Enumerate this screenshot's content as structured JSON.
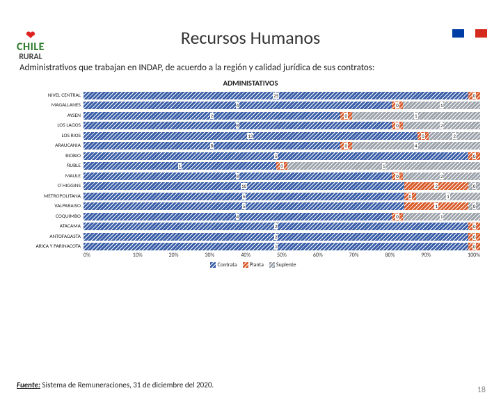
{
  "flag_colors": [
    "#003da5",
    "#ffffff",
    "#d52b1e"
  ],
  "logo": {
    "line1": "CHILE",
    "line2": "RURAL"
  },
  "title": "Recursos Humanos",
  "subtitle": "Administrativos que trabajan en INDAP, de acuerdo a la región y calidad jurídica de sus contratos:",
  "chart_title": "ADMINISTATIVOS",
  "series": [
    {
      "name": "Contrata",
      "color": "#3a5fa8"
    },
    {
      "name": "Planta",
      "color": "#d95b2a"
    },
    {
      "name": "Suplente",
      "color": "#9da3ab"
    }
  ],
  "pattern_stroke": "#ffffff",
  "categories": [
    {
      "label": "NIVEL CENTRAL",
      "v": [
        25,
        0,
        null
      ]
    },
    {
      "label": "MAGALLANES",
      "v": [
        4,
        0,
        1
      ]
    },
    {
      "label": "AYSEN",
      "v": [
        2,
        0,
        1
      ]
    },
    {
      "label": "LOS LAGOS",
      "v": [
        8,
        0,
        2
      ]
    },
    {
      "label": "LOS RIOS",
      "v": [
        13,
        0,
        2
      ]
    },
    {
      "label": "ARAUCANIA",
      "v": [
        8,
        0,
        4
      ]
    },
    {
      "label": "BIOBIO",
      "v": [
        5,
        0,
        null
      ]
    },
    {
      "label": "ÑUBLE",
      "v": [
        1,
        0,
        1
      ]
    },
    {
      "label": "MAULE",
      "v": [
        8,
        0,
        2
      ]
    },
    {
      "label": "O´HIGGINS",
      "v": [
        10,
        2,
        0
      ]
    },
    {
      "label": "METROPOLITANA",
      "v": [
        5,
        0,
        1
      ]
    },
    {
      "label": "VALPARAISO",
      "v": [
        5,
        1,
        0
      ]
    },
    {
      "label": "COQUIMBO",
      "v": [
        4,
        0,
        1
      ]
    },
    {
      "label": "ATACAMA",
      "v": [
        2,
        0,
        null
      ]
    },
    {
      "label": "ANTOFAGASTA",
      "v": [
        2,
        0,
        null
      ]
    },
    {
      "label": "ARICA Y PARINACOTA",
      "v": [
        1,
        0,
        null
      ]
    }
  ],
  "x_ticks": [
    "0%",
    "10%",
    "20%",
    "30%",
    "40%",
    "50%",
    "60%",
    "70%",
    "80%",
    "90%",
    "100%"
  ],
  "legend_labels": [
    "Contrata",
    "Planta",
    "Suplente"
  ],
  "source_label": "Fuente:",
  "source_text": " Sistema de Remuneraciones, 31 de diciembre del 2020.",
  "page_number": "18"
}
